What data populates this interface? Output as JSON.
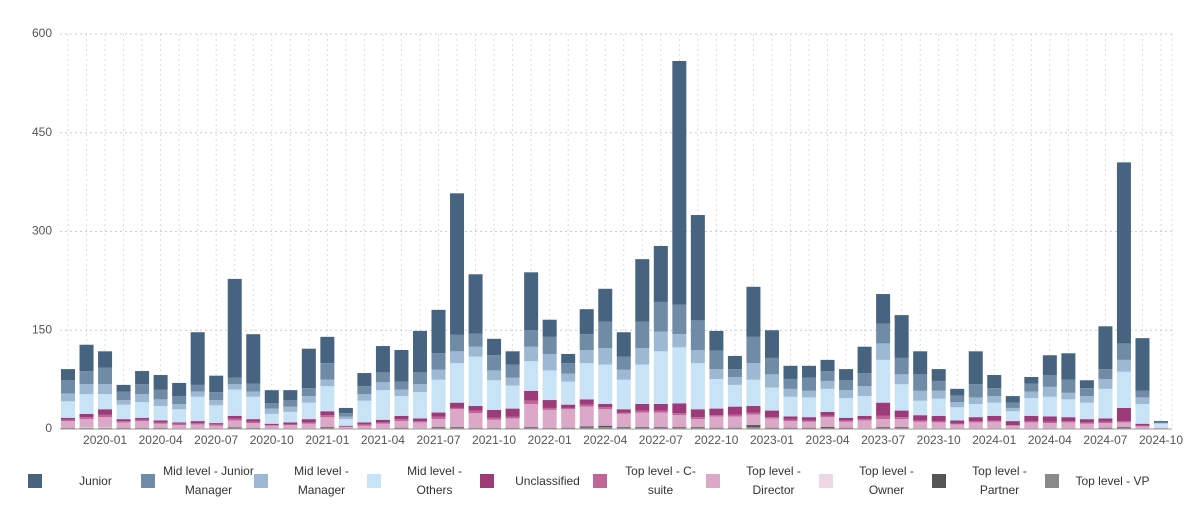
{
  "chart_data": {
    "type": "stacked_bar",
    "grid": true,
    "categories": [
      null,
      null,
      "2020-01",
      null,
      null,
      "2020-04",
      null,
      null,
      "2020-07",
      null,
      null,
      "2020-10",
      null,
      null,
      "2021-01",
      null,
      null,
      "2021-04",
      null,
      null,
      "2021-07",
      null,
      null,
      "2021-10",
      null,
      null,
      "2022-01",
      null,
      null,
      "2022-04",
      null,
      null,
      "2022-07",
      null,
      null,
      "2022-10",
      null,
      null,
      "2023-01",
      null,
      null,
      "2023-04",
      null,
      null,
      "2023-07",
      null,
      null,
      "2023-10",
      null,
      null,
      "2024-01",
      null,
      null,
      "2024-04",
      null,
      null,
      "2024-07",
      null,
      null,
      "2024-10"
    ],
    "ylim": [
      0,
      600
    ],
    "yticks": [
      0,
      150,
      300,
      450,
      600
    ],
    "series": [
      {
        "name": "Junior",
        "color": "#46637f",
        "values": [
          17,
          40,
          25,
          10,
          20,
          22,
          20,
          80,
          25,
          150,
          75,
          20,
          15,
          60,
          40,
          8,
          20,
          40,
          48,
          63,
          66,
          215,
          90,
          25,
          20,
          88,
          26,
          14,
          38,
          50,
          37,
          95,
          85,
          370,
          160,
          30,
          20,
          76,
          42,
          20,
          18,
          17,
          17,
          40,
          45,
          65,
          35,
          18,
          10,
          50,
          20,
          10,
          10,
          30,
          40,
          12,
          65,
          275,
          80,
          2
        ]
      },
      {
        "name": "Mid level - Junior Manager",
        "color": "#6f8ba6",
        "values": [
          20,
          20,
          25,
          13,
          15,
          15,
          12,
          10,
          12,
          10,
          12,
          8,
          10,
          12,
          25,
          5,
          12,
          15,
          12,
          18,
          25,
          25,
          20,
          23,
          20,
          25,
          26,
          16,
          24,
          40,
          20,
          40,
          45,
          45,
          45,
          28,
          12,
          40,
          25,
          15,
          20,
          15,
          15,
          20,
          30,
          25,
          25,
          15,
          10,
          20,
          12,
          8,
          12,
          18,
          20,
          12,
          15,
          25,
          10,
          1
        ]
      },
      {
        "name": "Mid level - Manager",
        "color": "#9db8d2",
        "values": [
          12,
          15,
          15,
          7,
          12,
          10,
          8,
          8,
          8,
          8,
          8,
          8,
          8,
          10,
          10,
          4,
          10,
          12,
          10,
          12,
          15,
          18,
          15,
          15,
          12,
          22,
          25,
          12,
          20,
          25,
          15,
          25,
          30,
          20,
          20,
          15,
          12,
          25,
          20,
          12,
          10,
          12,
          12,
          15,
          25,
          15,
          15,
          12,
          8,
          10,
          10,
          5,
          10,
          15,
          10,
          10,
          15,
          18,
          10,
          1
        ]
      },
      {
        "name": "Mid level - Others",
        "color": "#c8e3f5",
        "values": [
          25,
          30,
          23,
          22,
          24,
          22,
          20,
          37,
          27,
          40,
          34,
          15,
          16,
          25,
          38,
          10,
          33,
          45,
          30,
          40,
          50,
          60,
          75,
          45,
          35,
          45,
          45,
          35,
          55,
          60,
          45,
          60,
          80,
          85,
          70,
          45,
          33,
          40,
          35,
          30,
          30,
          35,
          30,
          30,
          65,
          40,
          22,
          26,
          20,
          20,
          20,
          15,
          27,
          30,
          27,
          25,
          45,
          55,
          30,
          6
        ]
      },
      {
        "name": "Unclassified",
        "color": "#9c3a7a",
        "values": [
          3,
          5,
          8,
          3,
          3,
          3,
          2,
          3,
          2,
          4,
          4,
          2,
          3,
          5,
          6,
          1,
          3,
          4,
          5,
          4,
          6,
          8,
          7,
          12,
          12,
          15,
          12,
          5,
          8,
          5,
          5,
          10,
          10,
          15,
          12,
          10,
          12,
          10,
          10,
          5,
          5,
          6,
          4,
          5,
          20,
          10,
          8,
          8,
          5,
          6,
          7,
          6,
          8,
          8,
          6,
          5,
          5,
          20,
          3,
          0
        ]
      },
      {
        "name": "Top level - C-suite",
        "color": "#c0649a",
        "values": [
          2,
          3,
          4,
          2,
          2,
          2,
          2,
          2,
          2,
          3,
          2,
          1,
          1,
          2,
          3,
          1,
          2,
          2,
          3,
          2,
          4,
          2,
          4,
          3,
          3,
          5,
          3,
          2,
          3,
          3,
          2,
          3,
          3,
          3,
          3,
          2,
          3,
          3,
          2,
          2,
          2,
          2,
          2,
          2,
          5,
          3,
          2,
          2,
          1,
          2,
          2,
          1,
          2,
          2,
          2,
          2,
          2,
          2,
          1,
          0
        ]
      },
      {
        "name": "Top level - Director",
        "color": "#dca8c8",
        "values": [
          10,
          12,
          15,
          8,
          10,
          6,
          5,
          6,
          4,
          10,
          7,
          4,
          5,
          7,
          15,
          3,
          5,
          7,
          10,
          9,
          12,
          27,
          22,
          12,
          14,
          35,
          27,
          28,
          30,
          25,
          20,
          22,
          22,
          18,
          12,
          17,
          17,
          16,
          14,
          10,
          9,
          15,
          9,
          12,
          12,
          12,
          10,
          9,
          6,
          9,
          10,
          4,
          9,
          8,
          9,
          7,
          7,
          7,
          3,
          2
        ]
      },
      {
        "name": "Top level - Owner",
        "color": "#efd7e6",
        "values": [
          0,
          1,
          1,
          0,
          0,
          0,
          0,
          0,
          0,
          0,
          0,
          0,
          0,
          0,
          0,
          0,
          0,
          0,
          0,
          0,
          0,
          0,
          0,
          0,
          0,
          0,
          0,
          0,
          0,
          0,
          0,
          0,
          0,
          0,
          0,
          0,
          0,
          0,
          0,
          0,
          0,
          0,
          0,
          0,
          0,
          0,
          0,
          0,
          0,
          0,
          0,
          0,
          0,
          0,
          0,
          0,
          0,
          0,
          0,
          0
        ]
      },
      {
        "name": "Top level - Partner",
        "color": "#555555",
        "values": [
          0,
          0,
          0,
          0,
          0,
          0,
          0,
          0,
          0,
          0,
          0,
          0,
          0,
          0,
          1,
          0,
          0,
          0,
          1,
          0,
          1,
          1,
          0,
          0,
          0,
          1,
          0,
          1,
          2,
          2,
          1,
          1,
          1,
          1,
          1,
          1,
          1,
          3,
          1,
          1,
          1,
          2,
          1,
          0,
          1,
          1,
          0,
          0,
          0,
          0,
          0,
          0,
          0,
          0,
          0,
          0,
          1,
          1,
          0,
          0
        ]
      },
      {
        "name": "Top level - VP",
        "color": "#8a8a8a",
        "values": [
          2,
          2,
          2,
          2,
          2,
          2,
          1,
          1,
          1,
          3,
          2,
          1,
          1,
          1,
          2,
          0,
          0,
          1,
          1,
          1,
          2,
          2,
          2,
          2,
          2,
          2,
          2,
          1,
          2,
          3,
          2,
          2,
          2,
          2,
          2,
          1,
          1,
          3,
          1,
          1,
          1,
          1,
          1,
          1,
          2,
          2,
          1,
          1,
          1,
          1,
          1,
          1,
          1,
          1,
          1,
          1,
          1,
          2,
          1,
          0
        ]
      }
    ]
  }
}
